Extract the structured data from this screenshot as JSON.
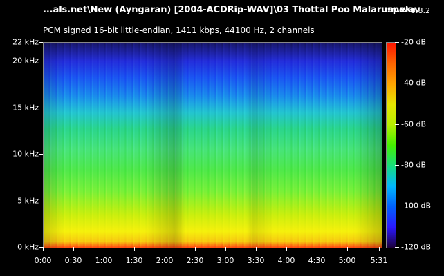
{
  "header": {
    "title": "...als.net\\New (Ayngaran) [2004-ACDRip-WAV]\\03 Thottal Poo Malarum.wav",
    "app_name": "spek",
    "app_version": "0.8.2",
    "subtitle": "PCM signed 16-bit little-endian, 1411 kbps, 44100 Hz, 2 channels"
  },
  "y_axis": {
    "labels": [
      "22 kHz",
      "20 kHz",
      "15 kHz",
      "10 kHz",
      "5 kHz",
      "0 kHz"
    ]
  },
  "x_axis": {
    "labels": [
      "0:00",
      "0:30",
      "1:00",
      "1:30",
      "2:00",
      "2:30",
      "3:00",
      "3:30",
      "4:00",
      "4:30",
      "5:00",
      "5:31"
    ]
  },
  "colorbar": {
    "labels": [
      "-20 dB",
      "-40 dB",
      "-60 dB",
      "-80 dB",
      "-100 dB",
      "-120 dB"
    ]
  }
}
